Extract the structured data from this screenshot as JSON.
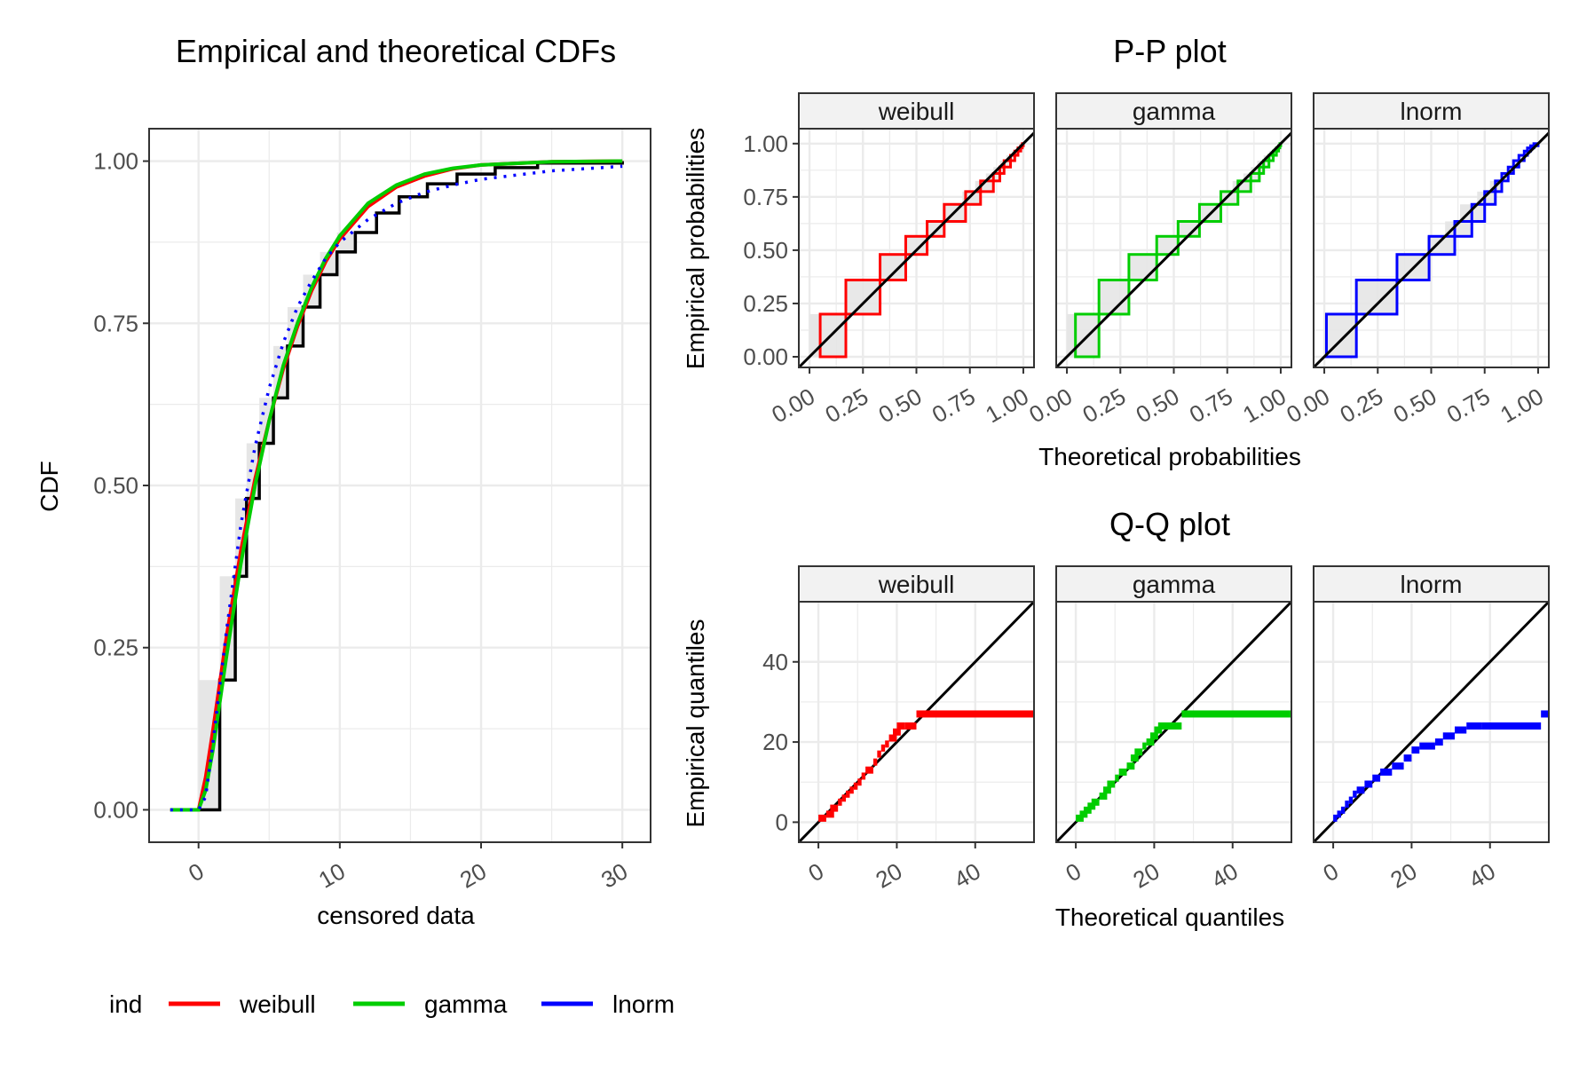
{
  "chart_data": [
    {
      "type": "line",
      "title": "Empirical and theoretical CDFs",
      "xlabel": "censored data",
      "ylabel": "CDF",
      "xlim": [
        -3.5,
        32
      ],
      "ylim": [
        -0.05,
        1.05
      ],
      "x_ticks": [
        "0",
        "10",
        "20",
        "30"
      ],
      "y_ticks": [
        "0.00",
        "0.25",
        "0.50",
        "0.75",
        "1.00"
      ],
      "grid": true,
      "empirical_steps": {
        "name": "empirical",
        "color": "#000000",
        "x": [
          -2,
          0,
          1.5,
          2.6,
          3.4,
          4.3,
          5.3,
          6.3,
          7.4,
          8.6,
          9.8,
          11.1,
          12.6,
          14.2,
          16.2,
          18.3,
          21,
          24,
          30
        ],
        "y": [
          0,
          0,
          0.2,
          0.36,
          0.48,
          0.565,
          0.635,
          0.715,
          0.775,
          0.825,
          0.86,
          0.89,
          0.92,
          0.945,
          0.965,
          0.98,
          0.99,
          0.997,
          1
        ]
      },
      "series": [
        {
          "name": "weibull",
          "color": "#ff0000",
          "dash": "solid",
          "x": [
            -2,
            0,
            0.5,
            1,
            2,
            3,
            4,
            5,
            6,
            7,
            8,
            9,
            10,
            12,
            14,
            16,
            18,
            20,
            25,
            30
          ],
          "y": [
            0,
            0,
            0.05,
            0.12,
            0.27,
            0.4,
            0.51,
            0.6,
            0.68,
            0.745,
            0.8,
            0.845,
            0.88,
            0.93,
            0.96,
            0.977,
            0.988,
            0.994,
            0.999,
            1
          ]
        },
        {
          "name": "gamma",
          "color": "#00cd00",
          "dash": "solid",
          "x": [
            -2,
            0,
            0.5,
            1,
            2,
            3,
            4,
            5,
            6,
            7,
            8,
            9,
            10,
            12,
            14,
            16,
            18,
            20,
            25,
            30
          ],
          "y": [
            0,
            0,
            0.03,
            0.09,
            0.24,
            0.38,
            0.5,
            0.6,
            0.685,
            0.75,
            0.805,
            0.85,
            0.885,
            0.935,
            0.963,
            0.98,
            0.989,
            0.994,
            0.999,
            1
          ]
        },
        {
          "name": "lnorm",
          "color": "#0000ff",
          "dash": "dotted",
          "x": [
            -2,
            0,
            0.5,
            1,
            2,
            3,
            4,
            5,
            6,
            7,
            8,
            9,
            10,
            12,
            14,
            16,
            18,
            20,
            25,
            30
          ],
          "y": [
            0,
            0,
            0.02,
            0.1,
            0.28,
            0.44,
            0.56,
            0.65,
            0.72,
            0.775,
            0.815,
            0.85,
            0.875,
            0.91,
            0.935,
            0.952,
            0.963,
            0.972,
            0.985,
            0.992
          ]
        }
      ]
    },
    {
      "type": "line",
      "title": "P-P plot",
      "xlabel": "Theoretical probabilities",
      "ylabel": "Empirical probabilities",
      "xlim": [
        -0.05,
        1.05
      ],
      "ylim": [
        -0.05,
        1.07
      ],
      "x_ticks": [
        "0.00",
        "0.25",
        "0.50",
        "0.75",
        "1.00"
      ],
      "y_ticks": [
        "0.00",
        "0.25",
        "0.50",
        "0.75",
        "1.00"
      ],
      "grid": true,
      "panels": [
        {
          "label": "weibull",
          "color": "#ff0000",
          "steps": [
            [
              0.05,
              0,
              0.2
            ],
            [
              0.17,
              0.2,
              0.36
            ],
            [
              0.33,
              0.36,
              0.48
            ],
            [
              0.45,
              0.48,
              0.565
            ],
            [
              0.55,
              0.565,
              0.635
            ],
            [
              0.63,
              0.635,
              0.715
            ],
            [
              0.73,
              0.715,
              0.775
            ],
            [
              0.8,
              0.775,
              0.825
            ],
            [
              0.86,
              0.825,
              0.86
            ],
            [
              0.89,
              0.86,
              0.89
            ],
            [
              0.91,
              0.89,
              0.92
            ],
            [
              0.94,
              0.92,
              0.945
            ],
            [
              0.96,
              0.945,
              0.965
            ],
            [
              0.975,
              0.965,
              0.98
            ],
            [
              0.988,
              0.98,
              0.99
            ],
            [
              0.995,
              0.99,
              1.0
            ]
          ]
        },
        {
          "label": "gamma",
          "color": "#00cd00",
          "steps": [
            [
              0.04,
              0,
              0.2
            ],
            [
              0.15,
              0.2,
              0.36
            ],
            [
              0.29,
              0.36,
              0.48
            ],
            [
              0.42,
              0.48,
              0.565
            ],
            [
              0.52,
              0.565,
              0.635
            ],
            [
              0.62,
              0.635,
              0.715
            ],
            [
              0.72,
              0.715,
              0.775
            ],
            [
              0.8,
              0.775,
              0.825
            ],
            [
              0.86,
              0.825,
              0.86
            ],
            [
              0.9,
              0.86,
              0.89
            ],
            [
              0.92,
              0.89,
              0.92
            ],
            [
              0.945,
              0.92,
              0.945
            ],
            [
              0.965,
              0.945,
              0.965
            ],
            [
              0.98,
              0.965,
              0.98
            ],
            [
              0.99,
              0.98,
              0.99
            ],
            [
              0.996,
              0.99,
              1.0
            ]
          ]
        },
        {
          "label": "lnorm",
          "color": "#0000ff",
          "steps": [
            [
              0.01,
              0,
              0.2
            ],
            [
              0.15,
              0.2,
              0.36
            ],
            [
              0.34,
              0.36,
              0.48
            ],
            [
              0.49,
              0.48,
              0.565
            ],
            [
              0.61,
              0.565,
              0.635
            ],
            [
              0.69,
              0.635,
              0.715
            ],
            [
              0.75,
              0.715,
              0.775
            ],
            [
              0.8,
              0.775,
              0.825
            ],
            [
              0.83,
              0.825,
              0.86
            ],
            [
              0.86,
              0.86,
              0.89
            ],
            [
              0.885,
              0.89,
              0.92
            ],
            [
              0.91,
              0.92,
              0.945
            ],
            [
              0.935,
              0.945,
              0.965
            ],
            [
              0.95,
              0.965,
              0.98
            ],
            [
              0.965,
              0.98,
              0.99
            ],
            [
              0.98,
              0.99,
              1.0
            ]
          ]
        }
      ]
    },
    {
      "type": "scatter",
      "title": "Q-Q plot",
      "xlabel": "Theoretical quantiles",
      "ylabel": "Empirical quantiles",
      "xlim": [
        -5,
        55
      ],
      "ylim": [
        -5,
        55
      ],
      "x_ticks": [
        "0",
        "20",
        "40"
      ],
      "y_ticks": [
        "0",
        "20",
        "40"
      ],
      "grid": true,
      "panels": [
        {
          "label": "weibull",
          "color": "#ff0000",
          "intervals": [
            [
              0,
              2,
              1
            ],
            [
              2,
              4,
              2
            ],
            [
              3,
              5,
              3.5
            ],
            [
              5,
              6,
              5
            ],
            [
              6,
              7,
              6
            ],
            [
              7,
              8,
              7
            ],
            [
              8,
              9,
              8
            ],
            [
              9,
              10,
              9
            ],
            [
              10,
              11,
              10
            ],
            [
              11,
              12,
              11.5
            ],
            [
              12,
              14,
              13
            ],
            [
              14,
              15,
              15
            ],
            [
              15,
              16,
              17
            ],
            [
              16,
              17,
              18.5
            ],
            [
              17,
              18,
              19.5
            ],
            [
              18,
              20,
              21
            ],
            [
              19,
              21,
              22.5
            ],
            [
              20,
              22,
              24
            ],
            [
              22,
              25,
              24
            ],
            [
              25,
              55,
              27
            ]
          ]
        },
        {
          "label": "gamma",
          "color": "#00cd00",
          "intervals": [
            [
              0,
              2,
              1
            ],
            [
              1,
              3,
              2
            ],
            [
              2,
              4,
              3
            ],
            [
              3,
              5,
              4
            ],
            [
              4,
              6,
              5
            ],
            [
              6,
              8,
              6.5
            ],
            [
              7,
              9,
              8
            ],
            [
              8,
              10,
              9.5
            ],
            [
              10,
              11,
              11
            ],
            [
              11,
              13,
              12.5
            ],
            [
              13,
              15,
              14
            ],
            [
              14,
              16,
              16
            ],
            [
              15,
              17,
              17.5
            ],
            [
              17,
              18,
              19
            ],
            [
              18,
              20,
              20
            ],
            [
              19,
              21,
              21.5
            ],
            [
              20,
              22,
              23
            ],
            [
              21,
              23,
              24
            ],
            [
              22,
              27,
              24
            ],
            [
              27,
              55,
              27
            ]
          ]
        },
        {
          "label": "lnorm",
          "color": "#0000ff",
          "intervals": [
            [
              0,
              1,
              1
            ],
            [
              1,
              2,
              2
            ],
            [
              2,
              3,
              3
            ],
            [
              3,
              4,
              4.5
            ],
            [
              4,
              5,
              5.5
            ],
            [
              5,
              6,
              7
            ],
            [
              6,
              8,
              8
            ],
            [
              8,
              10,
              9.5
            ],
            [
              10,
              12,
              11
            ],
            [
              12,
              15,
              12.5
            ],
            [
              15,
              18,
              14
            ],
            [
              18,
              20,
              16
            ],
            [
              20,
              22,
              18
            ],
            [
              22,
              26,
              19
            ],
            [
              26,
              28,
              20
            ],
            [
              28,
              31,
              21.5
            ],
            [
              31,
              34,
              23
            ],
            [
              34,
              38,
              24
            ],
            [
              38,
              53,
              24
            ],
            [
              53,
              56,
              27
            ]
          ]
        }
      ]
    }
  ],
  "legend": {
    "title": "ind",
    "items": [
      {
        "label": "weibull",
        "color": "#ff0000"
      },
      {
        "label": "gamma",
        "color": "#00cd00"
      },
      {
        "label": "lnorm",
        "color": "#0000ff"
      }
    ]
  }
}
